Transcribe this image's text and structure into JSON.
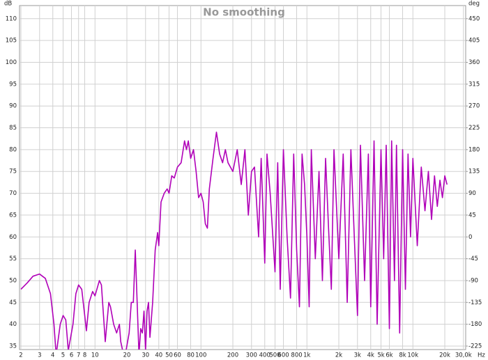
{
  "chart_data": {
    "type": "line",
    "title": "No smoothing",
    "ylabel": "dB",
    "y2label": "deg",
    "xlabel": "Hz",
    "xscale": "log",
    "grid": true,
    "color": "#b000b8",
    "xlim": [
      1.94,
      31500
    ],
    "ylim": [
      34.2,
      113
    ],
    "y2lim": [
      -232.2,
      477
    ],
    "xticks": [
      2,
      3,
      4,
      5,
      6,
      7,
      8,
      10,
      20,
      30,
      40,
      50,
      60,
      80,
      100,
      200,
      300,
      400,
      500,
      600,
      800,
      {
        "value": 1000,
        "label": "1k"
      },
      {
        "value": 2000,
        "label": "2k"
      },
      {
        "value": 3000,
        "label": "3k"
      },
      {
        "value": 4000,
        "label": "4k"
      },
      {
        "value": 5000,
        "label": "5k"
      },
      {
        "value": 6000,
        "label": "6k"
      },
      {
        "value": 8000,
        "label": "8k"
      },
      {
        "value": 10000,
        "label": "10k"
      },
      {
        "value": 20000,
        "label": "20k"
      },
      {
        "value": 30000,
        "label": "30,0k"
      }
    ],
    "yticks": [
      35,
      40,
      45,
      50,
      55,
      60,
      65,
      70,
      75,
      80,
      85,
      90,
      95,
      100,
      105,
      110
    ],
    "y2ticks": [
      -225,
      -180,
      -135,
      -90,
      -45,
      0,
      45,
      90,
      135,
      180,
      225,
      270,
      315,
      360,
      405,
      450
    ],
    "x": [
      2,
      2.3,
      2.6,
      3,
      3.4,
      3.8,
      4.1,
      4.3,
      4.7,
      5,
      5.3,
      5.6,
      6.2,
      6.6,
      7,
      7.5,
      8,
      8.3,
      8.8,
      9.5,
      10,
      11,
      11.5,
      12.5,
      13.5,
      14,
      15,
      16,
      17,
      17.5,
      19,
      21,
      22,
      23,
      24,
      25,
      26,
      27,
      28,
      29,
      30,
      31,
      32,
      33,
      35,
      37,
      39,
      40,
      42,
      45,
      48,
      50,
      53,
      56,
      60,
      65,
      70,
      73,
      76,
      80,
      85,
      90,
      95,
      100,
      105,
      110,
      115,
      120,
      130,
      140,
      150,
      160,
      170,
      180,
      200,
      220,
      240,
      260,
      280,
      300,
      320,
      350,
      370,
      400,
      420,
      450,
      500,
      530,
      560,
      600,
      650,
      700,
      750,
      800,
      850,
      900,
      950,
      1000,
      1050,
      1100,
      1200,
      1300,
      1400,
      1500,
      1600,
      1700,
      1800,
      2000,
      2200,
      2400,
      2600,
      2800,
      3000,
      3200,
      3500,
      3800,
      4000,
      4300,
      4600,
      5000,
      5300,
      5600,
      6000,
      6300,
      6700,
      7000,
      7500,
      8000,
      8500,
      9000,
      9500,
      10000,
      11000,
      12000,
      13000,
      14000,
      15000,
      16000,
      17000,
      18000,
      19000,
      20000,
      21000
    ],
    "values": [
      48,
      49.5,
      51,
      51.5,
      50.5,
      47,
      40,
      33,
      40,
      42,
      41,
      34,
      40,
      47,
      49,
      48,
      42,
      38.5,
      45,
      47.5,
      46.5,
      50,
      49,
      36,
      45,
      44,
      40,
      38,
      40,
      36,
      32,
      38,
      45,
      45,
      57,
      45,
      33,
      39,
      38,
      43,
      34,
      43,
      45,
      37,
      45,
      57,
      61,
      58,
      68,
      70,
      71,
      70,
      74,
      73.5,
      76,
      77,
      82,
      80,
      82,
      78,
      80,
      75,
      69,
      70,
      68,
      63,
      62,
      71,
      78,
      84,
      79,
      77,
      80,
      77,
      75,
      80,
      72,
      80,
      65,
      75,
      76,
      60,
      78,
      54,
      79,
      70,
      52,
      77,
      48,
      80,
      60,
      46,
      79,
      57,
      44,
      79,
      72,
      60,
      44,
      80,
      55,
      75,
      50,
      78,
      62,
      48,
      80,
      55,
      79,
      45,
      80,
      60,
      42,
      81,
      50,
      79,
      44,
      82,
      40,
      80,
      55,
      81,
      39,
      82,
      50,
      81,
      38,
      80,
      48,
      79,
      60,
      78,
      58,
      76,
      66,
      75,
      64,
      74,
      67,
      73,
      69,
      74,
      72
    ]
  }
}
